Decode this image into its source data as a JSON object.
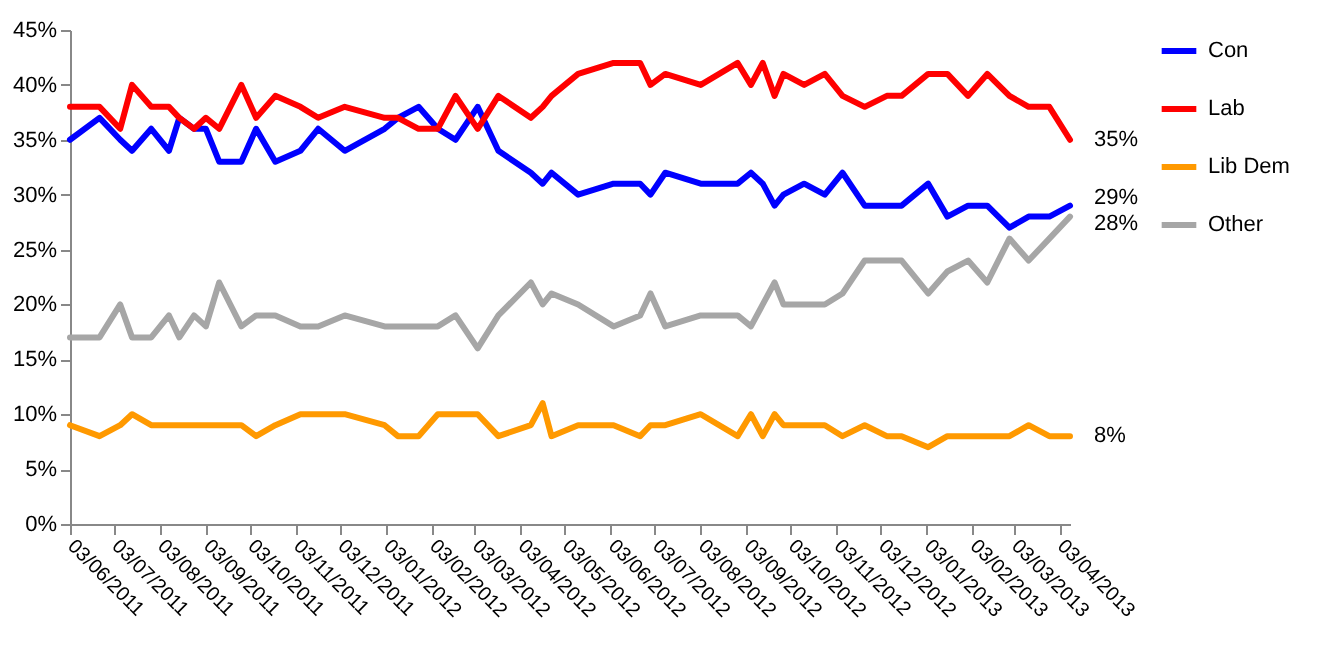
{
  "chart_data": {
    "type": "line",
    "x": [
      "2011-06-03",
      "2011-06-23",
      "2011-07-07",
      "2011-07-15",
      "2011-07-28",
      "2011-08-09",
      "2011-08-16",
      "2011-08-26",
      "2011-09-03",
      "2011-09-12",
      "2011-09-27",
      "2011-10-07",
      "2011-10-20",
      "2011-11-06",
      "2011-11-18",
      "2011-12-06",
      "2012-01-02",
      "2012-01-11",
      "2012-01-25",
      "2012-02-07",
      "2012-02-19",
      "2012-03-05",
      "2012-03-19",
      "2012-04-10",
      "2012-04-18",
      "2012-04-24",
      "2012-05-12",
      "2012-06-05",
      "2012-06-23",
      "2012-06-30",
      "2012-07-10",
      "2012-08-03",
      "2012-08-28",
      "2012-09-06",
      "2012-09-14",
      "2012-09-22",
      "2012-09-28",
      "2012-10-12",
      "2012-10-26",
      "2012-11-07",
      "2012-11-22",
      "2012-12-07",
      "2012-12-17",
      "2013-01-04",
      "2013-01-17",
      "2013-01-31",
      "2013-02-13",
      "2013-02-28",
      "2013-03-13",
      "2013-03-27",
      "2013-04-10"
    ],
    "series": [
      {
        "name": "Con",
        "color": "#0000ff",
        "values": [
          35,
          37,
          35,
          34,
          36,
          34,
          37,
          36,
          36,
          33,
          33,
          36,
          33,
          34,
          36,
          34,
          36,
          37,
          38,
          36,
          35,
          38,
          34,
          32,
          31,
          32,
          30,
          31,
          31,
          30,
          32,
          31,
          31,
          32,
          31,
          29,
          30,
          31,
          30,
          32,
          29,
          29,
          29,
          31,
          28,
          29,
          29,
          27,
          28,
          28,
          29
        ],
        "value_labels": [
          null,
          null,
          null,
          null,
          null,
          null,
          null,
          null,
          null,
          null,
          null,
          null,
          null,
          null,
          null,
          null,
          null,
          null,
          null,
          null,
          null,
          null,
          null,
          null,
          null,
          null,
          null,
          null,
          null,
          null,
          null,
          null,
          null,
          null,
          null,
          null,
          null,
          null,
          null,
          null,
          null,
          null,
          null,
          null,
          null,
          null,
          null,
          null,
          null,
          null,
          "29%"
        ]
      },
      {
        "name": "Lab",
        "color": "#ff0000",
        "values": [
          38,
          38,
          36,
          40,
          38,
          38,
          37,
          36,
          37,
          36,
          40,
          37,
          39,
          38,
          37,
          38,
          37,
          37,
          36,
          36,
          39,
          36,
          39,
          37,
          38,
          39,
          41,
          42,
          42,
          40,
          41,
          40,
          42,
          40,
          42,
          39,
          41,
          40,
          41,
          39,
          38,
          39,
          39,
          41,
          41,
          39,
          41,
          39,
          38,
          38,
          35
        ],
        "value_labels": [
          null,
          null,
          null,
          null,
          null,
          null,
          null,
          null,
          null,
          null,
          null,
          null,
          null,
          null,
          null,
          null,
          null,
          null,
          null,
          null,
          null,
          null,
          null,
          null,
          null,
          null,
          null,
          null,
          null,
          null,
          null,
          null,
          null,
          null,
          null,
          null,
          null,
          null,
          null,
          null,
          null,
          null,
          null,
          null,
          null,
          null,
          null,
          null,
          null,
          null,
          "35%"
        ]
      },
      {
        "name": "Lib Dem",
        "color": "#ff9900",
        "values": [
          9,
          8,
          9,
          10,
          9,
          9,
          9,
          9,
          9,
          9,
          9,
          8,
          9,
          10,
          10,
          10,
          9,
          8,
          8,
          10,
          10,
          10,
          8,
          9,
          11,
          8,
          9,
          9,
          8,
          9,
          9,
          10,
          8,
          10,
          8,
          10,
          9,
          9,
          9,
          8,
          9,
          8,
          8,
          7,
          8,
          8,
          8,
          8,
          9,
          8,
          8
        ],
        "value_labels": [
          null,
          null,
          null,
          null,
          null,
          null,
          null,
          null,
          null,
          null,
          null,
          null,
          null,
          null,
          null,
          null,
          null,
          null,
          null,
          null,
          null,
          null,
          null,
          null,
          null,
          null,
          null,
          null,
          null,
          null,
          null,
          null,
          null,
          null,
          null,
          null,
          null,
          null,
          null,
          null,
          null,
          null,
          null,
          null,
          null,
          null,
          null,
          null,
          null,
          null,
          "8%"
        ]
      },
      {
        "name": "Other",
        "color": "#a6a6a6",
        "values": [
          17,
          17,
          20,
          17,
          17,
          19,
          17,
          19,
          18,
          22,
          18,
          19,
          19,
          18,
          18,
          19,
          18,
          18,
          18,
          18,
          19,
          16,
          19,
          22,
          20,
          21,
          20,
          18,
          19,
          21,
          18,
          19,
          19,
          18,
          20,
          22,
          20,
          20,
          20,
          21,
          24,
          24,
          24,
          21,
          23,
          24,
          22,
          26,
          24,
          26,
          28
        ],
        "value_labels": [
          null,
          null,
          null,
          null,
          null,
          null,
          null,
          null,
          null,
          null,
          null,
          null,
          null,
          null,
          null,
          null,
          null,
          null,
          null,
          null,
          null,
          null,
          null,
          null,
          null,
          null,
          null,
          null,
          null,
          null,
          null,
          null,
          null,
          null,
          null,
          null,
          null,
          null,
          null,
          null,
          null,
          null,
          null,
          null,
          null,
          null,
          null,
          null,
          null,
          null,
          "28%"
        ]
      }
    ],
    "xlim": [
      "2011-06-03",
      "2013-04-10"
    ],
    "xticks": [
      {
        "value": "2011-06-03",
        "label": "03/06/2011"
      },
      {
        "value": "2011-07-03",
        "label": "03/07/2011"
      },
      {
        "value": "2011-08-03",
        "label": "03/08/2011"
      },
      {
        "value": "2011-09-03",
        "label": "03/09/2011"
      },
      {
        "value": "2011-10-03",
        "label": "03/10/2011"
      },
      {
        "value": "2011-11-03",
        "label": "03/11/2011"
      },
      {
        "value": "2011-12-03",
        "label": "03/12/2011"
      },
      {
        "value": "2012-01-03",
        "label": "03/01/2012"
      },
      {
        "value": "2012-02-03",
        "label": "03/02/2012"
      },
      {
        "value": "2012-03-03",
        "label": "03/03/2012"
      },
      {
        "value": "2012-04-03",
        "label": "03/04/2012"
      },
      {
        "value": "2012-05-03",
        "label": "03/05/2012"
      },
      {
        "value": "2012-06-03",
        "label": "03/06/2012"
      },
      {
        "value": "2012-07-03",
        "label": "03/07/2012"
      },
      {
        "value": "2012-08-03",
        "label": "03/08/2012"
      },
      {
        "value": "2012-09-03",
        "label": "03/09/2012"
      },
      {
        "value": "2012-10-03",
        "label": "03/10/2012"
      },
      {
        "value": "2012-11-03",
        "label": "03/11/2012"
      },
      {
        "value": "2012-12-03",
        "label": "03/12/2012"
      },
      {
        "value": "2013-01-03",
        "label": "03/01/2013"
      },
      {
        "value": "2013-02-03",
        "label": "03/02/2013"
      },
      {
        "value": "2013-03-03",
        "label": "03/03/2013"
      },
      {
        "value": "2013-04-03",
        "label": "03/04/2013"
      }
    ],
    "ylim": [
      0,
      45
    ],
    "yticks": [
      {
        "value": 0,
        "label": "0%"
      },
      {
        "value": 5,
        "label": "5%"
      },
      {
        "value": 10,
        "label": "10%"
      },
      {
        "value": 15,
        "label": "15%"
      },
      {
        "value": 20,
        "label": "20%"
      },
      {
        "value": 25,
        "label": "25%"
      },
      {
        "value": 30,
        "label": "30%"
      },
      {
        "value": 35,
        "label": "35%"
      },
      {
        "value": 40,
        "label": "40%"
      },
      {
        "value": 45,
        "label": "45%"
      }
    ],
    "legend": "right",
    "marker": "none",
    "line_style": "solid"
  }
}
